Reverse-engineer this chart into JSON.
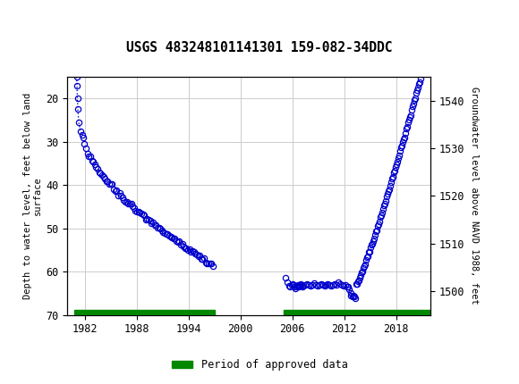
{
  "title": "USGS 483248101141301 159-082-34DDC",
  "ylabel_left": "Depth to water level, feet below land\nsurface",
  "ylabel_right": "Groundwater level above NAVD 1988, feet",
  "ylim_left": [
    70,
    15
  ],
  "ylim_right": [
    1495,
    1545
  ],
  "xlim": [
    1980.0,
    2022.0
  ],
  "xticks": [
    1982,
    1988,
    1994,
    2000,
    2006,
    2012,
    2018
  ],
  "yticks_left": [
    20,
    30,
    40,
    50,
    60,
    70
  ],
  "yticks_right": [
    1500,
    1510,
    1520,
    1530,
    1540
  ],
  "legend_label": "Period of approved data",
  "legend_color": "#008800",
  "header_color": "#006633",
  "plot_bg": "#ffffff",
  "grid_color": "#cccccc",
  "data_color": "#0000cc",
  "approved_bar1_xmin": 1980.8,
  "approved_bar1_xmax": 1997.0,
  "approved_bar2_xmin": 2005.0,
  "approved_bar2_xmax": 2022.0,
  "s1_early_x": [
    1981.05,
    1981.1,
    1981.15,
    1981.2,
    1981.3,
    1981.5,
    1981.7
  ],
  "s1_early_y": [
    15.0,
    17.0,
    20.0,
    22.5,
    25.5,
    27.5,
    28.5
  ],
  "s2_cluster_x": [
    2005.2,
    2005.4,
    2005.6,
    2005.7,
    2005.9,
    2006.0,
    2006.1,
    2006.2,
    2006.3,
    2006.4,
    2006.5,
    2006.6,
    2006.7,
    2006.8,
    2006.9,
    2007.0,
    2007.1,
    2007.2,
    2007.3,
    2007.5,
    2007.7,
    2007.9,
    2008.1,
    2008.3,
    2008.5,
    2008.7,
    2008.9,
    2009.1,
    2009.3,
    2009.5,
    2009.7,
    2009.9,
    2010.1,
    2010.3,
    2010.5,
    2010.7,
    2010.9,
    2011.1,
    2011.3,
    2011.5,
    2011.7,
    2011.9,
    2012.1,
    2012.3
  ],
  "s2_cluster_y": [
    61.5,
    62.5,
    63.2,
    63.5,
    63.0,
    62.8,
    63.0,
    63.5,
    63.8,
    63.5,
    63.2,
    63.0,
    63.3,
    63.5,
    63.2,
    62.9,
    63.1,
    63.4,
    63.2,
    63.0,
    62.8,
    63.1,
    63.3,
    63.0,
    62.7,
    63.0,
    63.2,
    63.0,
    62.8,
    63.0,
    63.2,
    63.0,
    62.8,
    63.0,
    63.2,
    63.0,
    62.8,
    63.0,
    62.5,
    62.8,
    63.0,
    63.2,
    63.0,
    63.5
  ],
  "s2_trough_x": [
    2012.4,
    2012.5,
    2012.6,
    2012.7,
    2012.8,
    2012.9,
    2013.0,
    2013.1,
    2013.2,
    2013.3
  ],
  "s2_trough_y": [
    63.8,
    64.2,
    64.8,
    65.0,
    65.5,
    65.8,
    65.5,
    65.0,
    64.2,
    63.5
  ]
}
